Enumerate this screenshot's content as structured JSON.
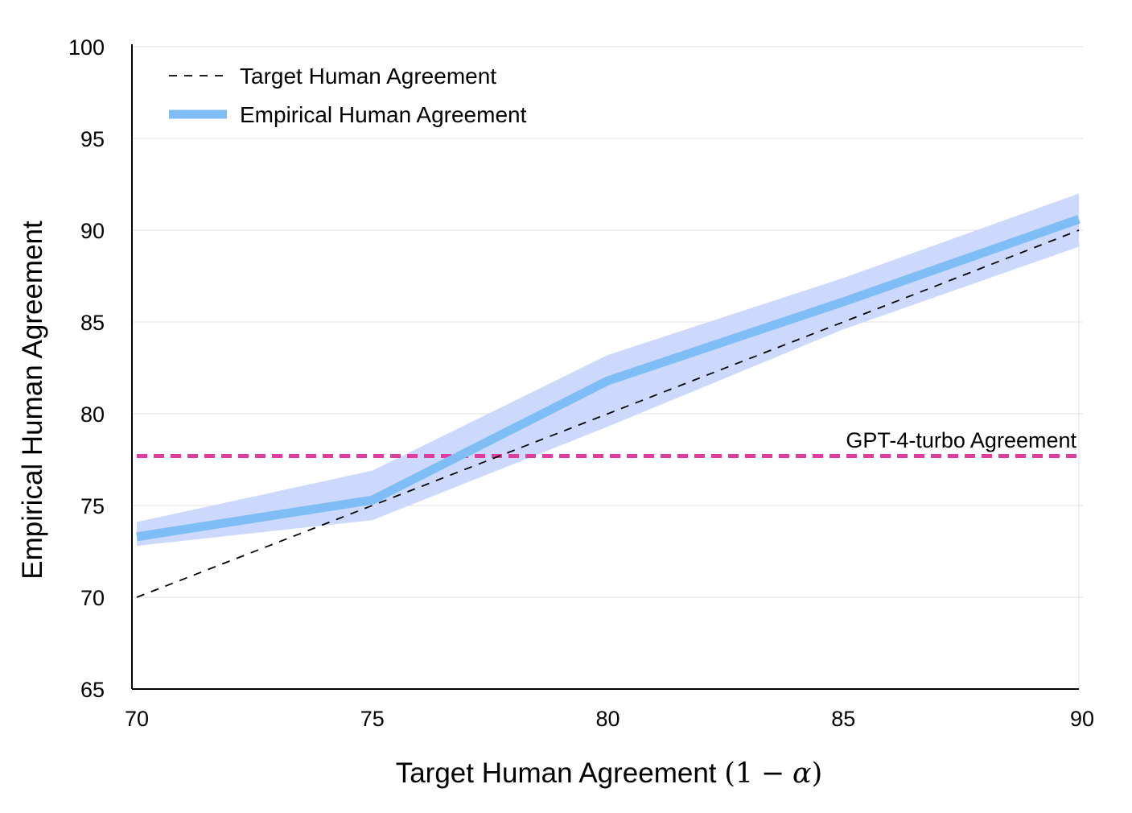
{
  "chart_data": {
    "type": "line",
    "xlabel": {
      "text": "Target Human Agreement",
      "math_open": "(",
      "math_one": "1",
      "math_minus": "−",
      "math_alpha": "α",
      "math_close": ")"
    },
    "ylabel": "Empirical Human Agreement",
    "xlim": [
      70,
      90
    ],
    "ylim": [
      65,
      100
    ],
    "xticks": [
      70,
      75,
      80,
      85,
      90
    ],
    "yticks": [
      65,
      70,
      75,
      80,
      85,
      90,
      95,
      100
    ],
    "grid": "horizontal",
    "legend_position": "top-left",
    "series": [
      {
        "name": "Target Human Agreement",
        "style": "dashed",
        "color": "#000000",
        "x": [
          70,
          90
        ],
        "y": [
          70,
          90
        ]
      },
      {
        "name": "Empirical Human Agreement",
        "style": "solid",
        "color": "#7fbdf7",
        "x": [
          70,
          75,
          80,
          85,
          90
        ],
        "y": [
          73.3,
          75.3,
          81.8,
          86.1,
          90.6
        ],
        "band_lower": [
          72.8,
          74.2,
          79.3,
          84.6,
          89.1
        ],
        "band_upper": [
          74.1,
          76.9,
          83.2,
          87.4,
          92.0
        ],
        "band_color": "#c9d7fc"
      }
    ],
    "hlines": [
      {
        "label": "GPT-4-turbo Agreement",
        "y": 77.7,
        "style": "dashed",
        "color": "#e03c9e"
      }
    ]
  }
}
